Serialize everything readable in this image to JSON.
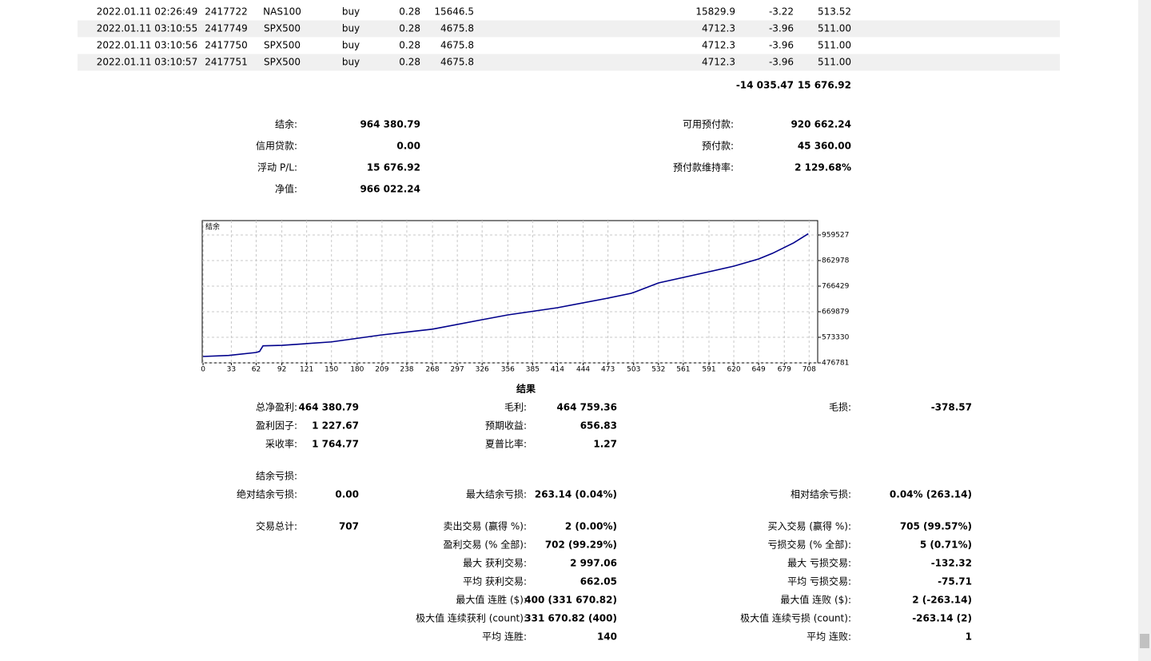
{
  "table": {
    "rows": [
      [
        "2022.01.11 02:26:49",
        "2417722",
        "NAS100",
        "buy",
        "0.28",
        "15646.5",
        "15829.9",
        "-3.22",
        "513.52"
      ],
      [
        "2022.01.11 03:10:55",
        "2417749",
        "SPX500",
        "buy",
        "0.28",
        "4675.8",
        "4712.3",
        "-3.96",
        "511.00"
      ],
      [
        "2022.01.11 03:10:56",
        "2417750",
        "SPX500",
        "buy",
        "0.28",
        "4675.8",
        "4712.3",
        "-3.96",
        "511.00"
      ],
      [
        "2022.01.11 03:10:57",
        "2417751",
        "SPX500",
        "buy",
        "0.28",
        "4675.8",
        "4712.3",
        "-3.96",
        "511.00"
      ]
    ],
    "totals": [
      "-14 035.47",
      "15 676.92"
    ]
  },
  "account": {
    "left": [
      [
        "结余:",
        "964 380.79"
      ],
      [
        "信用贷款:",
        "0.00"
      ],
      [
        "浮动 P/L:",
        "15 676.92"
      ],
      [
        "净值:",
        "966 022.24"
      ]
    ],
    "right": [
      [
        "可用预付款:",
        "920 662.24"
      ],
      [
        "预付款:",
        "45 360.00"
      ],
      [
        "预付款维持率:",
        "2 129.68%"
      ]
    ]
  },
  "chart_data": {
    "type": "line",
    "title": "结余",
    "color": "#00008b",
    "x": [
      0,
      30,
      62,
      66,
      70,
      92,
      150,
      208,
      268,
      326,
      356,
      414,
      473,
      500,
      505,
      532,
      591,
      620,
      649,
      665,
      690,
      707
    ],
    "values": [
      500900,
      505000,
      516000,
      520000,
      541000,
      543000,
      556000,
      582000,
      604000,
      639700,
      657800,
      685000,
      721200,
      739300,
      745000,
      778500,
      820700,
      841800,
      869000,
      890000,
      930000,
      964381
    ],
    "xlim": [
      -1,
      718
    ],
    "xticks": [
      0,
      33,
      62,
      92,
      121,
      150,
      180,
      209,
      238,
      268,
      297,
      326,
      356,
      385,
      414,
      444,
      473,
      503,
      532,
      561,
      591,
      620,
      649,
      679,
      708
    ],
    "ylim": [
      476781,
      1013836
    ],
    "yticks": [
      476781,
      573330,
      669879,
      766429,
      862978,
      959527
    ],
    "grid": true
  },
  "results": {
    "title": "结果",
    "rows": [
      {
        "c1": [
          "总净盈利:",
          "464 380.79"
        ],
        "c2": [
          "毛利:",
          "464 759.36"
        ],
        "c3": [
          "毛损:",
          "-378.57"
        ]
      },
      {
        "c1": [
          "盈利因子:",
          "1 227.67"
        ],
        "c2": [
          "预期收益:",
          "656.83"
        ]
      },
      {
        "c1": [
          "采收率:",
          "1 764.77"
        ],
        "c2": [
          "夏普比率:",
          "1.27"
        ]
      },
      {
        "c1": [
          "结余亏损:"
        ]
      },
      {
        "c1": [
          "绝对结余亏损:",
          "0.00"
        ],
        "c2": [
          "最大结余亏损:",
          "263.14 (0.04%)"
        ],
        "c3": [
          "相对结余亏损:",
          "0.04% (263.14)"
        ]
      },
      {
        "c1": [
          "交易总计:",
          "707"
        ],
        "c2": [
          "卖出交易 (赢得 %):",
          "2 (0.00%)"
        ],
        "c3": [
          "买入交易 (赢得 %):",
          "705 (99.57%)"
        ]
      },
      {
        "c2": [
          "盈利交易 (% 全部):",
          "702 (99.29%)"
        ],
        "c3": [
          "亏损交易 (% 全部):",
          "5 (0.71%)"
        ]
      },
      {
        "c2": [
          "最大 获利交易:",
          "2 997.06"
        ],
        "c3": [
          "最大 亏损交易:",
          "-132.32"
        ]
      },
      {
        "c2": [
          "平均 获利交易:",
          "662.05"
        ],
        "c3": [
          "平均 亏损交易:",
          "-75.71"
        ]
      },
      {
        "c2": [
          "最大值 连胜 ($):",
          "400 (331 670.82)"
        ],
        "c3": [
          "最大值 连败 ($):",
          "2 (-263.14)"
        ]
      },
      {
        "c2": [
          "极大值 连续获利 (count):",
          "331 670.82 (400)"
        ],
        "c3": [
          "极大值 连续亏损 (count):",
          "-263.14 (2)"
        ]
      },
      {
        "c2": [
          "平均 连胜:",
          "140"
        ],
        "c3": [
          "平均 连败:",
          "1"
        ]
      }
    ]
  }
}
